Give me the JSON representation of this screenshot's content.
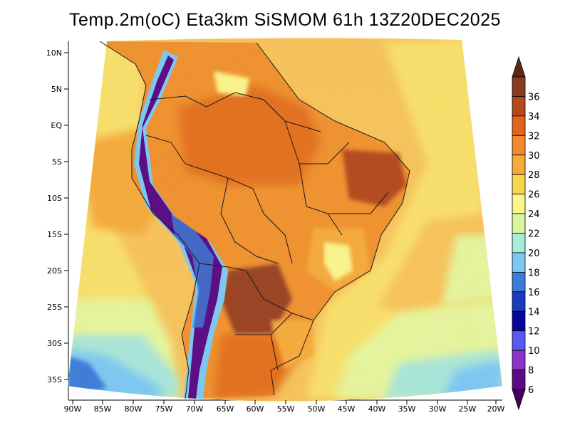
{
  "title": "Temp.2m(oC) Eta3km SiSMOM 61h 13Z20DEC2025",
  "lat_labels": [
    "10N",
    "5N",
    "EQ",
    "5S",
    "10S",
    "15S",
    "20S",
    "25S",
    "30S",
    "35S"
  ],
  "lon_labels": [
    "90W",
    "85W",
    "80W",
    "75W",
    "70W",
    "65W",
    "60W",
    "55W",
    "50W",
    "45W",
    "40W",
    "35W",
    "30W",
    "25W",
    "20W"
  ],
  "colorbar": {
    "labels": [
      "36",
      "34",
      "32",
      "30",
      "28",
      "26",
      "24",
      "22",
      "20",
      "18",
      "16",
      "14",
      "12",
      "10",
      "8",
      "6"
    ],
    "colors": [
      "#5a2a14",
      "#8b3c1e",
      "#b54a1e",
      "#e0641a",
      "#f08a2c",
      "#f5aa3a",
      "#f8d64a",
      "#fbf58a",
      "#d8f5a2",
      "#a6ecd8",
      "#7cc8f2",
      "#3c7cd8",
      "#1c3cc0",
      "#06069c",
      "#5a5af0",
      "#8c32c8",
      "#5a0a82",
      "#46005c"
    ],
    "units": "oC"
  },
  "field_colors": {
    "ocean_warm": "#f7c35a",
    "ocean_mid": "#f9e06a",
    "ocean_cool": "#e6f59c",
    "ocean_cold": "#a8e6d8",
    "ocean_colder": "#7cc8f2",
    "ocean_coldest": "#3c7cd8",
    "amazon": "#f0912e",
    "amazon_hot": "#e36f1c",
    "northeast_hot": "#b54a1e",
    "chaco_hot": "#9a4220",
    "pampas": "#e36f1c",
    "south_cool": "#f5aa3a",
    "andes_cold": "#5a0a82",
    "andes_mid": "#3c7cd8",
    "highlands_cool": "#fbf58a",
    "boundary": "#1a1a1a"
  }
}
